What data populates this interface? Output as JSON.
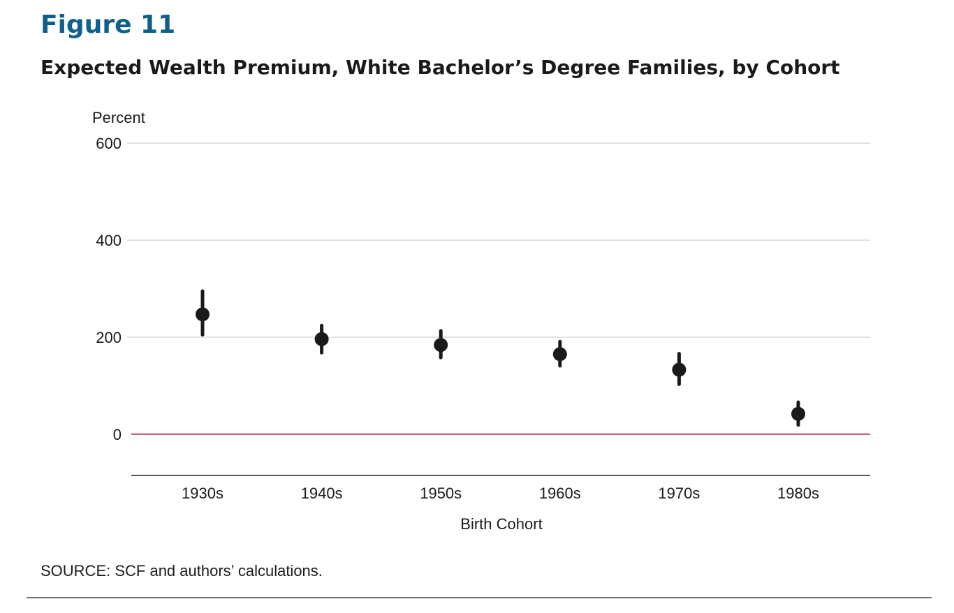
{
  "figure_label": "Figure 11",
  "title": "Expected Wealth Premium, White Bachelor’s Degree Families, by Cohort",
  "source": "SOURCE: SCF and authors’ calculations.",
  "colors": {
    "figure_label": "#0f5f8c",
    "point": "#1a1a1a",
    "zero_line": "#c0505a",
    "gridline": "#d9d9d9",
    "x_axis": "#555555"
  },
  "chart_data": {
    "type": "scatter",
    "title": "Expected Wealth Premium, White Bachelor’s Degree Families, by Cohort",
    "xlabel": "Birth Cohort",
    "ylabel": "Percent",
    "ylim": [
      -85,
      600
    ],
    "yticks": [
      0,
      200,
      400,
      600
    ],
    "grid": true,
    "legend": "none",
    "categories": [
      "1930s",
      "1940s",
      "1950s",
      "1960s",
      "1970s",
      "1980s"
    ],
    "series": [
      {
        "values": [
          247,
          196,
          184,
          165,
          133,
          42
        ],
        "lower": [
          205,
          168,
          158,
          141,
          103,
          19
        ],
        "upper": [
          295,
          224,
          213,
          191,
          166,
          66
        ]
      }
    ],
    "reference_line": {
      "y": 0
    }
  }
}
